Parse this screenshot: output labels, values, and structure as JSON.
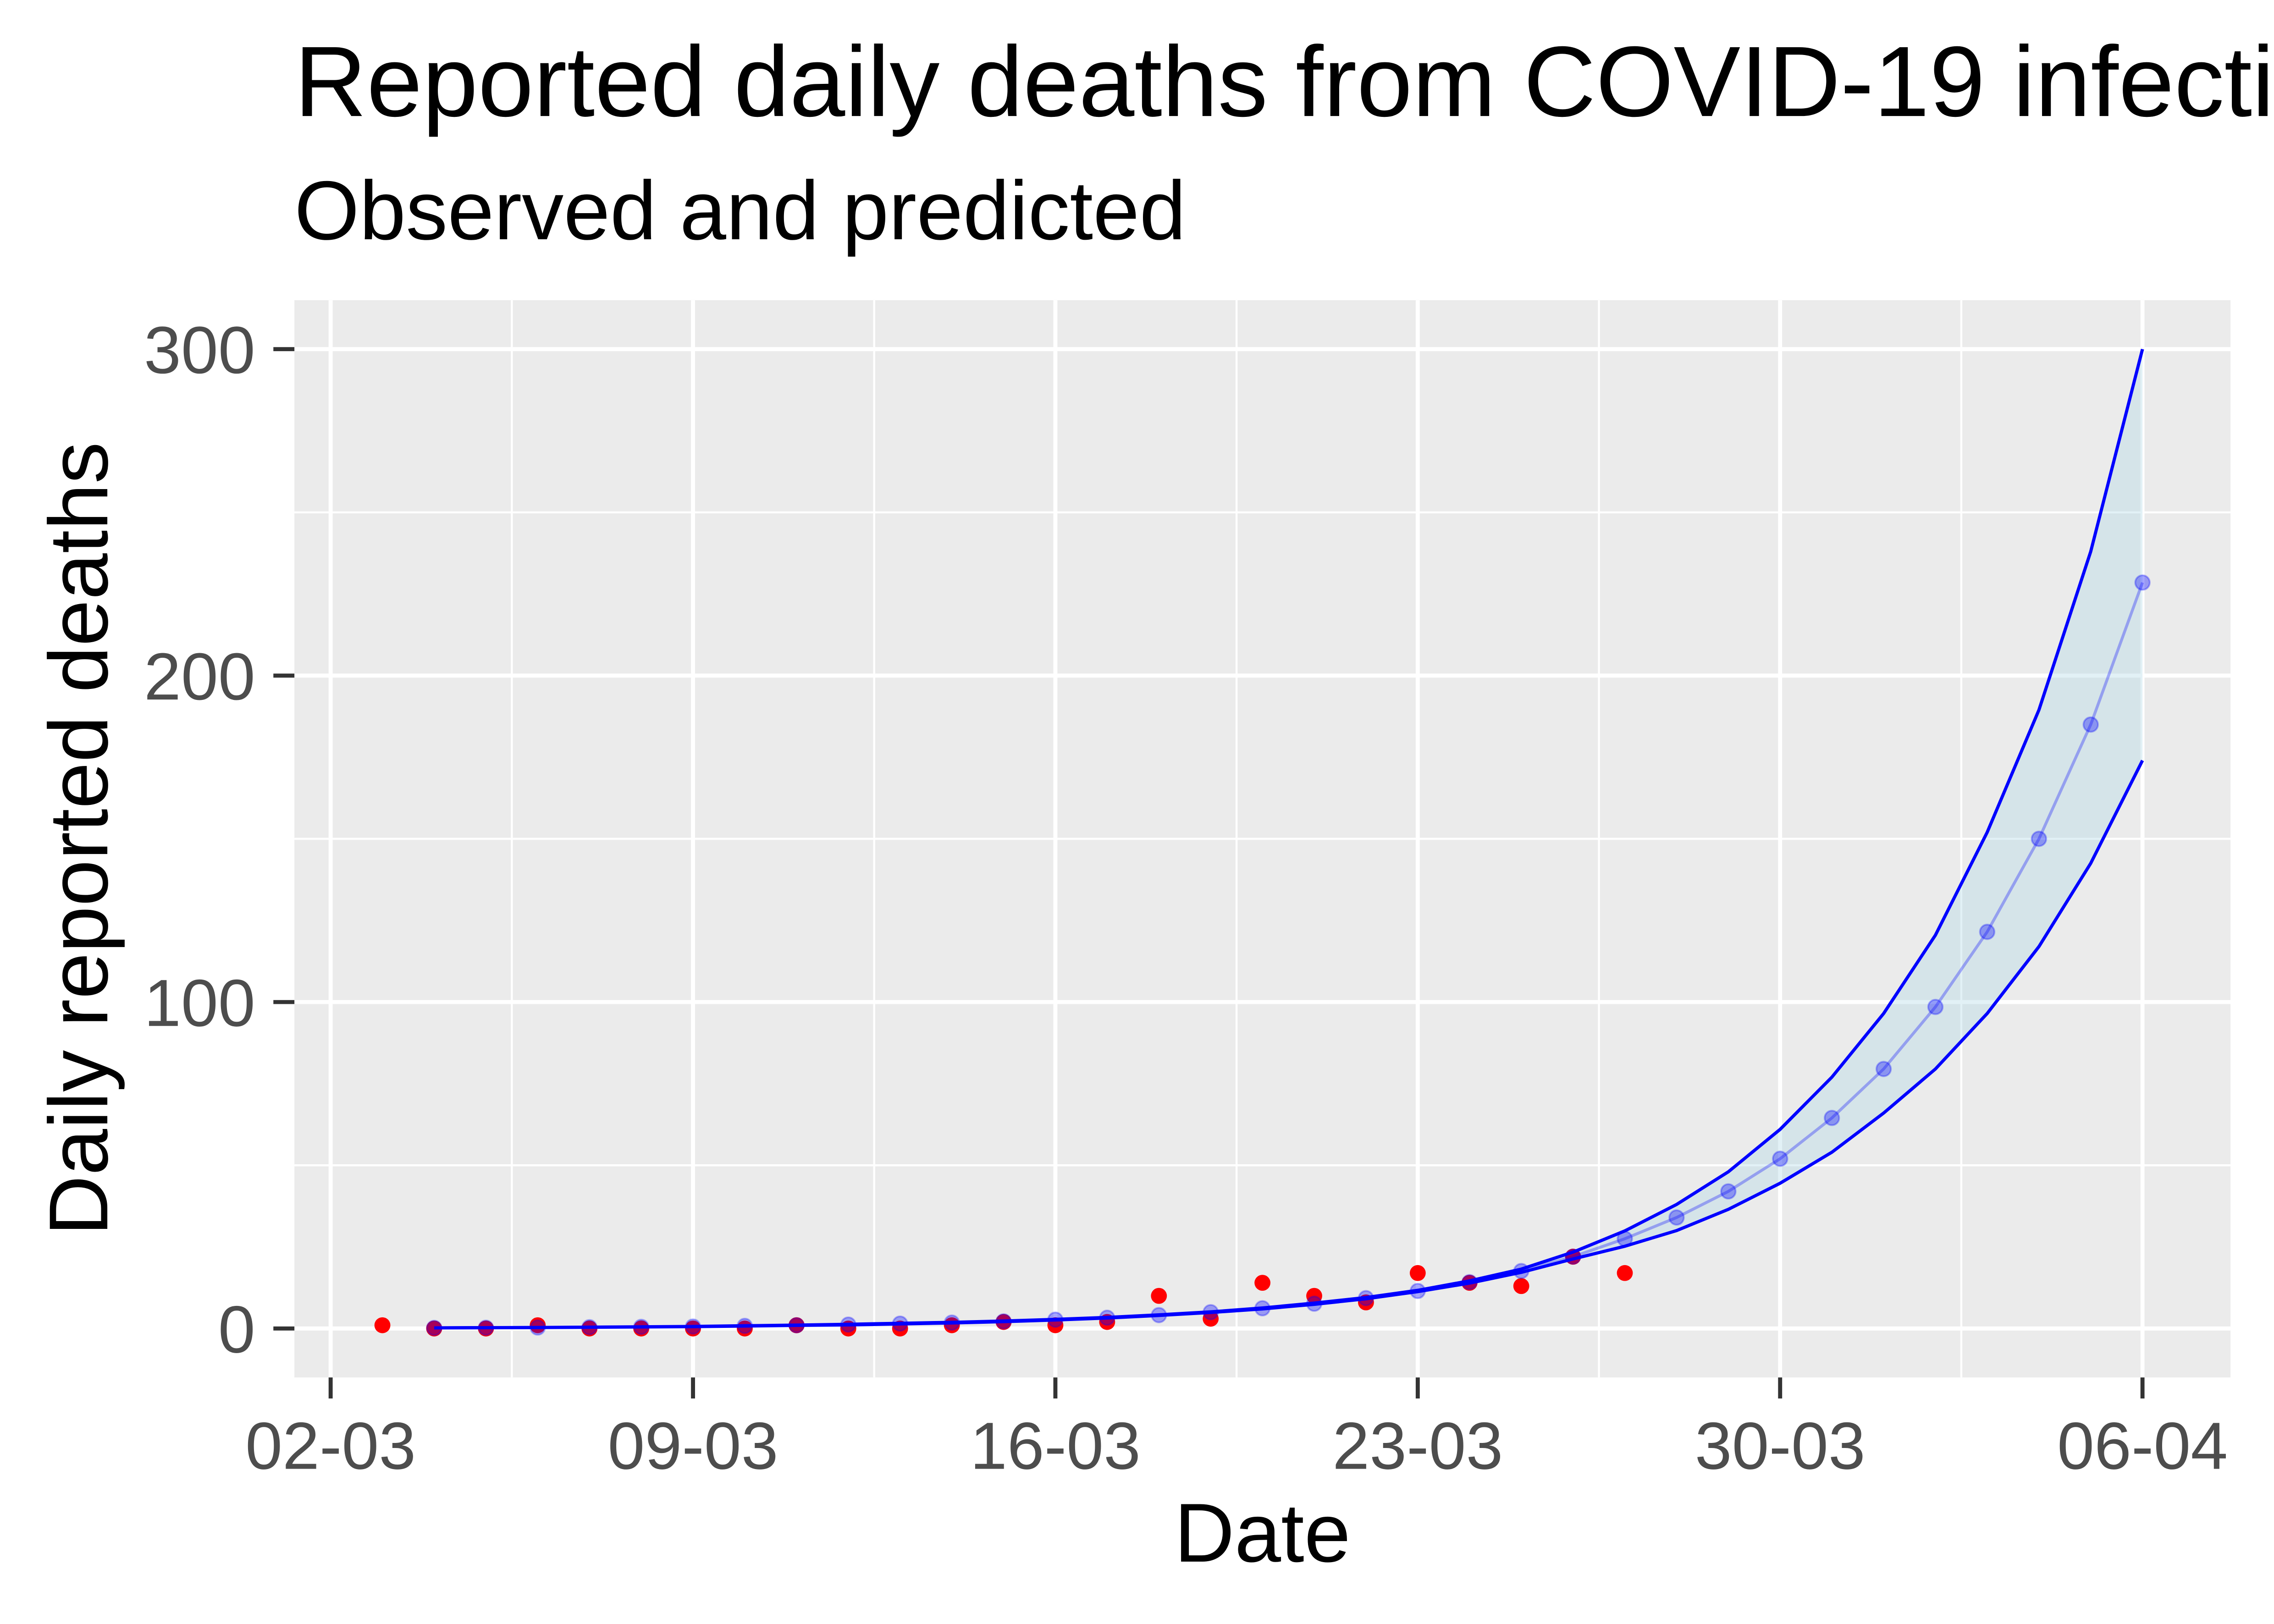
{
  "chart_data": {
    "type": "line",
    "title": "Reported daily deaths from COVID-19 infecti",
    "subtitle": "Observed and predicted",
    "xlabel": "Date",
    "ylabel": "Daily reported deaths",
    "x_ticks": [
      "02-03",
      "09-03",
      "16-03",
      "23-03",
      "30-03",
      "06-04"
    ],
    "y_ticks": [
      0,
      100,
      200,
      300
    ],
    "ylim": [
      -15,
      315
    ],
    "grid": true,
    "observed": {
      "x": [
        "03-03",
        "04-03",
        "05-03",
        "06-03",
        "07-03",
        "08-03",
        "09-03",
        "10-03",
        "11-03",
        "12-03",
        "13-03",
        "14-03",
        "15-03",
        "16-03",
        "17-03",
        "18-03",
        "19-03",
        "20-03",
        "21-03",
        "22-03",
        "23-03",
        "24-03",
        "25-03",
        "26-03",
        "27-03"
      ],
      "y": [
        1,
        0,
        0,
        1,
        0,
        0,
        0,
        0,
        1,
        0,
        0,
        1,
        2,
        1,
        2,
        10,
        3,
        14,
        10,
        8,
        17,
        14,
        13,
        22,
        17
      ]
    },
    "predicted": {
      "x": [
        "04-03",
        "05-03",
        "06-03",
        "07-03",
        "08-03",
        "09-03",
        "10-03",
        "11-03",
        "12-03",
        "13-03",
        "14-03",
        "15-03",
        "16-03",
        "17-03",
        "18-03",
        "19-03",
        "20-03",
        "21-03",
        "22-03",
        "23-03",
        "24-03",
        "25-03",
        "26-03",
        "27-03",
        "28-03",
        "29-03",
        "30-03",
        "31-03",
        "01-04",
        "02-04",
        "03-04",
        "04-04",
        "05-04",
        "06-04"
      ],
      "y": [
        0.2,
        0.25,
        0.3,
        0.4,
        0.5,
        0.6,
        0.8,
        1.0,
        1.2,
        1.5,
        1.8,
        2.2,
        2.7,
        3.3,
        4.1,
        5.0,
        6.2,
        7.6,
        9.3,
        11.5,
        14.2,
        17.6,
        22,
        27.5,
        34,
        42,
        52,
        64.5,
        79.5,
        98.5,
        121.5,
        150,
        185,
        228.5
      ],
      "lower": [
        0.2,
        0.24,
        0.29,
        0.38,
        0.47,
        0.57,
        0.75,
        0.95,
        1.1,
        1.4,
        1.7,
        2.1,
        2.6,
        3.2,
        4.0,
        4.9,
        6.0,
        7.4,
        9.1,
        11.3,
        13.9,
        17.2,
        21.3,
        25.2,
        30,
        36.5,
        44.5,
        54,
        66,
        79.5,
        96.5,
        117,
        142.5,
        174
      ],
      "upper": [
        0.2,
        0.26,
        0.32,
        0.42,
        0.53,
        0.64,
        0.85,
        1.05,
        1.3,
        1.6,
        1.9,
        2.3,
        2.8,
        3.4,
        4.2,
        5.1,
        6.3,
        7.8,
        9.5,
        11.7,
        14.6,
        18.2,
        23.4,
        29.9,
        38,
        48,
        61,
        77,
        96.5,
        120.5,
        152,
        189.5,
        238,
        300
      ]
    },
    "colors": {
      "observed": "#FF0000",
      "predicted": "#0000FF",
      "band_fill": "#ADD8E6",
      "panel": "#EBEBEB",
      "grid": "#FFFFFF",
      "tick": "#333333"
    }
  }
}
